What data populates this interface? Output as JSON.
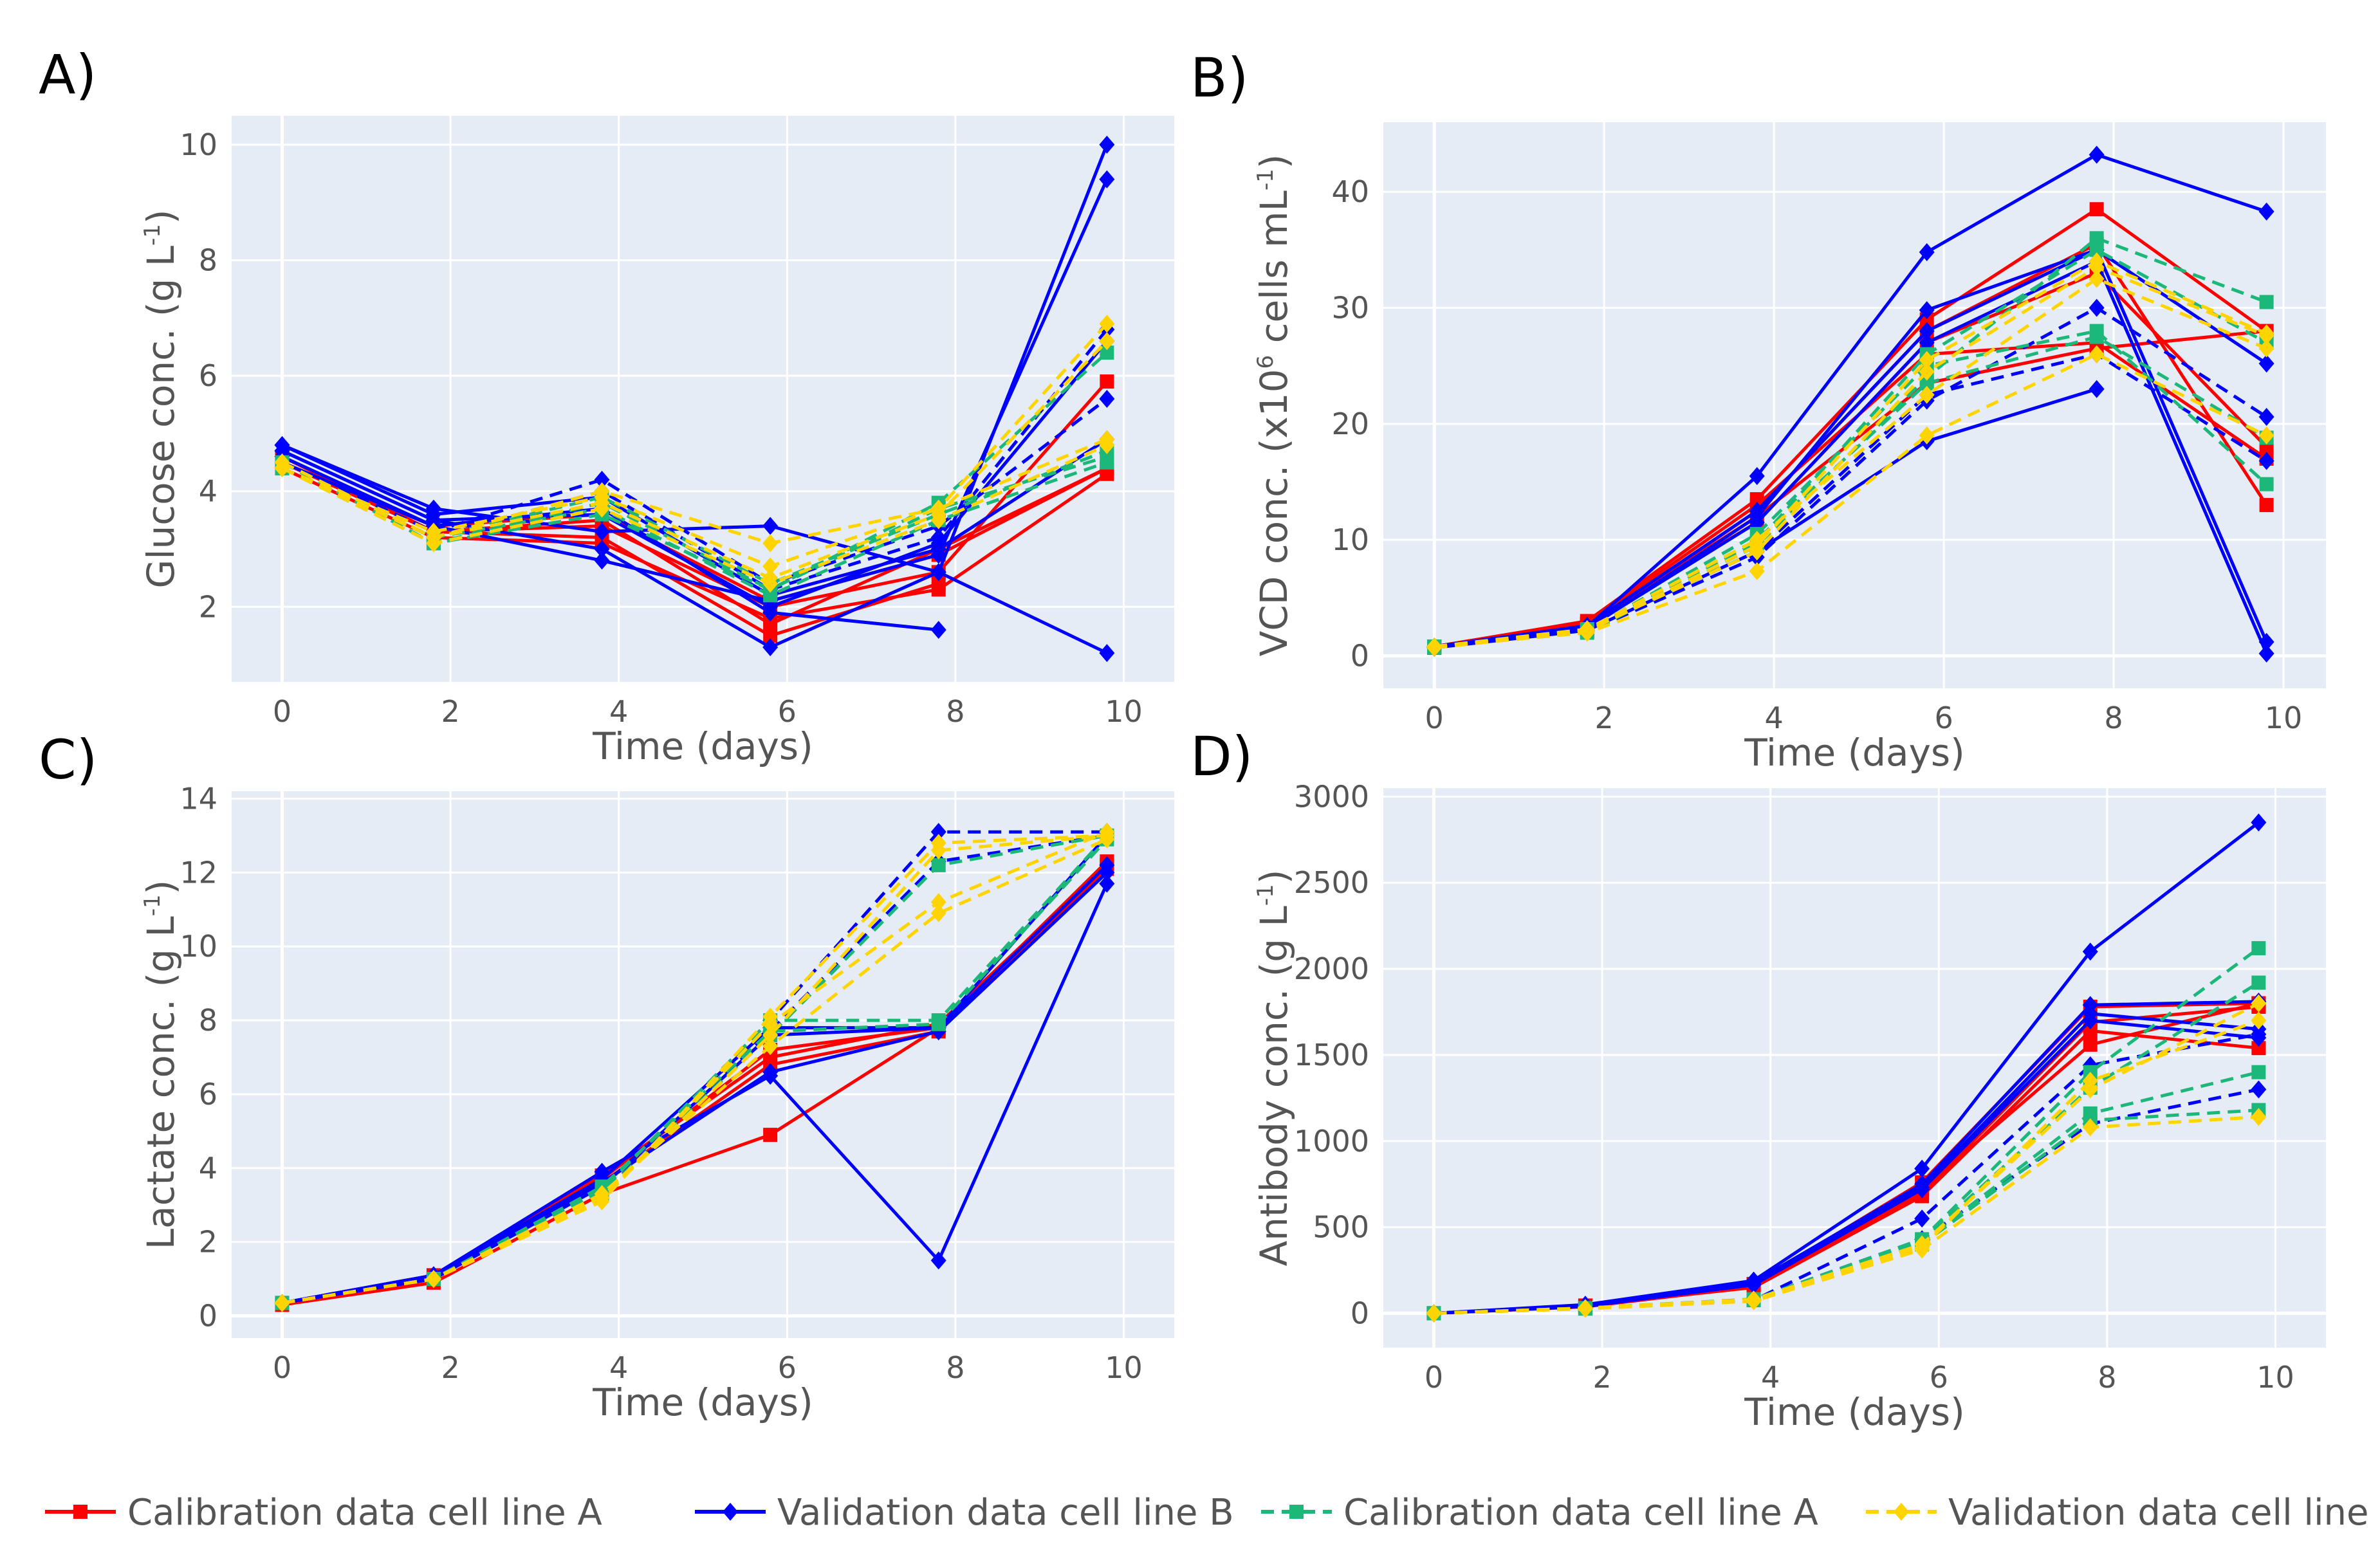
{
  "colors": {
    "background": "#ffffff",
    "plot_bg": "#e5ecf6",
    "grid": "#ffffff",
    "text": "#555555",
    "letter": "#000000",
    "cal_A": "#ff0000",
    "val_B": "#0000ff",
    "cal_A_dash": "#1cb87a",
    "val_B_dash": "#ffd400"
  },
  "legend": [
    {
      "label": "Calibration data cell line  A",
      "color": "#ff0000",
      "dash": false,
      "marker": "square"
    },
    {
      "label": "Validation data cell line B",
      "color": "#0000ff",
      "dash": false,
      "marker": "diamond"
    },
    {
      "label": "Calibration data cell line A",
      "color": "#1cb87a",
      "dash": true,
      "marker": "square"
    },
    {
      "label": "Validation data cell line B",
      "color": "#ffd400",
      "dash": true,
      "marker": "diamond"
    }
  ],
  "chart_data": [
    {
      "id": "A",
      "letter": "A)",
      "type": "line",
      "xlabel": "Time (days)",
      "ylabel": "Glucose conc. (g L",
      "ylabel_sup": "-1",
      "ylabel_end": ")",
      "xlim": [
        -0.6,
        10.6
      ],
      "ylim": [
        0.7,
        10.5
      ],
      "xticks": [
        0,
        2,
        4,
        6,
        8,
        10
      ],
      "yticks": [
        2,
        4,
        6,
        8,
        10
      ],
      "x": [
        0,
        1.8,
        3.8,
        5.8,
        7.8,
        9.8
      ],
      "series": [
        {
          "group": "cal_A",
          "values": [
            4.5,
            3.3,
            3.2,
            1.5,
            2.4,
            null
          ]
        },
        {
          "group": "cal_A",
          "values": [
            4.4,
            3.2,
            3.1,
            1.8,
            2.3,
            4.3
          ]
        },
        {
          "group": "cal_A",
          "values": [
            4.6,
            3.3,
            3.4,
            2.0,
            2.6,
            5.9
          ]
        },
        {
          "group": "cal_A",
          "values": [
            4.5,
            3.4,
            3.6,
            2.1,
            2.9,
            4.4
          ]
        },
        {
          "group": "cal_A",
          "values": [
            4.6,
            3.3,
            3.5,
            1.7,
            3.0,
            4.4
          ]
        },
        {
          "group": "val_B",
          "values": [
            4.8,
            3.7,
            3.3,
            3.4,
            2.6,
            1.2
          ]
        },
        {
          "group": "val_B",
          "values": [
            4.7,
            3.5,
            3.0,
            1.3,
            2.6,
            10.0
          ]
        },
        {
          "group": "val_B",
          "values": [
            4.6,
            3.4,
            2.8,
            2.1,
            2.9,
            9.4
          ]
        },
        {
          "group": "val_B",
          "values": [
            4.5,
            3.4,
            3.7,
            1.9,
            1.6,
            null
          ]
        },
        {
          "group": "val_B",
          "values": [
            4.8,
            3.6,
            3.9,
            2.2,
            3.0,
            4.9
          ]
        },
        {
          "group": "val_B",
          "values": [
            4.7,
            3.5,
            3.6,
            2.0,
            3.1,
            6.6
          ]
        },
        {
          "group": "val_B",
          "dash": true,
          "values": [
            4.5,
            3.3,
            4.2,
            2.4,
            3.4,
            5.6
          ]
        },
        {
          "group": "val_B",
          "dash": true,
          "values": [
            4.4,
            3.2,
            4.0,
            2.3,
            3.2,
            6.8
          ]
        },
        {
          "group": "cal_A_dash",
          "values": [
            4.4,
            3.1,
            3.8,
            2.3,
            3.8,
            6.4
          ]
        },
        {
          "group": "cal_A_dash",
          "values": [
            4.5,
            3.2,
            3.9,
            2.4,
            3.6,
            4.7
          ]
        },
        {
          "group": "cal_A_dash",
          "values": [
            4.4,
            3.2,
            3.7,
            2.2,
            3.5,
            4.5
          ]
        },
        {
          "group": "cal_A_dash",
          "values": [
            4.5,
            3.1,
            3.6,
            2.3,
            3.7,
            4.6
          ]
        },
        {
          "group": "val_B_dash",
          "values": [
            4.4,
            3.2,
            4.0,
            3.1,
            3.7,
            6.9
          ]
        },
        {
          "group": "val_B_dash",
          "values": [
            4.4,
            3.3,
            3.9,
            2.7,
            3.7,
            4.9
          ]
        },
        {
          "group": "val_B_dash",
          "values": [
            4.5,
            3.2,
            3.8,
            2.5,
            3.6,
            6.6
          ]
        },
        {
          "group": "val_B_dash",
          "values": [
            4.4,
            3.1,
            3.7,
            2.4,
            3.5,
            4.8
          ]
        }
      ]
    },
    {
      "id": "B",
      "letter": "B)",
      "type": "line",
      "xlabel": "Time (days)",
      "ylabel": "VCD conc. (x10",
      "ylabel_sup": "6",
      "ylabel_end": " cells mL",
      "ylabel_sup2": "-1",
      "ylabel_end2": ")",
      "xlim": [
        -0.6,
        10.5
      ],
      "ylim": [
        -2.8,
        46
      ],
      "xticks": [
        0,
        2,
        4,
        6,
        8,
        10
      ],
      "yticks": [
        0,
        10,
        20,
        30,
        40
      ],
      "x": [
        0,
        1.8,
        3.8,
        5.8,
        7.8,
        9.8
      ],
      "series": [
        {
          "group": "cal_A",
          "values": [
            0.8,
            3.0,
            13.5,
            29.0,
            38.5,
            28.0
          ]
        },
        {
          "group": "cal_A",
          "values": [
            0.7,
            2.5,
            12.5,
            28.0,
            35.5,
            13.0
          ]
        },
        {
          "group": "cal_A",
          "values": [
            0.8,
            2.8,
            13.0,
            26.0,
            27.0,
            17.0
          ]
        },
        {
          "group": "cal_A",
          "values": [
            0.7,
            2.6,
            12.0,
            23.5,
            26.5,
            28.0
          ]
        },
        {
          "group": "cal_A",
          "values": [
            0.8,
            2.7,
            11.5,
            27.0,
            33.0,
            18.0
          ]
        },
        {
          "group": "val_B",
          "values": [
            0.8,
            2.5,
            15.5,
            34.8,
            43.2,
            38.3
          ]
        },
        {
          "group": "val_B",
          "values": [
            0.7,
            2.3,
            12.0,
            29.8,
            35.0,
            1.2
          ]
        },
        {
          "group": "val_B",
          "values": [
            0.8,
            2.4,
            11.5,
            27.0,
            34.0,
            0.2
          ]
        },
        {
          "group": "val_B",
          "values": [
            0.7,
            2.2,
            9.0,
            18.5,
            23.0,
            null
          ]
        },
        {
          "group": "val_B",
          "values": [
            0.8,
            2.6,
            12.5,
            28.0,
            35.0,
            25.2
          ]
        },
        {
          "group": "val_B",
          "dash": true,
          "values": [
            0.8,
            2.1,
            8.5,
            22.0,
            30.0,
            20.6
          ]
        },
        {
          "group": "val_B",
          "dash": true,
          "values": [
            0.7,
            2.2,
            9.0,
            22.5,
            26.0,
            16.8
          ]
        },
        {
          "group": "cal_A_dash",
          "values": [
            0.8,
            2.0,
            9.5,
            24.0,
            36.0,
            30.5
          ]
        },
        {
          "group": "cal_A_dash",
          "values": [
            0.8,
            2.2,
            10.5,
            25.0,
            28.0,
            14.8
          ]
        },
        {
          "group": "cal_A_dash",
          "values": [
            0.8,
            2.1,
            9.8,
            26.0,
            35.0,
            27.0
          ]
        },
        {
          "group": "cal_A_dash",
          "values": [
            0.7,
            2.3,
            10.0,
            23.5,
            27.5,
            18.8
          ]
        },
        {
          "group": "val_B_dash",
          "values": [
            0.8,
            2.0,
            7.3,
            19.0,
            26.0,
            19.0
          ]
        },
        {
          "group": "val_B_dash",
          "values": [
            0.8,
            2.2,
            9.0,
            24.5,
            33.5,
            27.6
          ]
        },
        {
          "group": "val_B_dash",
          "values": [
            0.7,
            2.1,
            9.5,
            25.5,
            34.0,
            27.8
          ]
        },
        {
          "group": "val_B_dash",
          "values": [
            0.8,
            2.3,
            10.0,
            22.5,
            32.5,
            26.5
          ]
        }
      ]
    },
    {
      "id": "C",
      "letter": "C)",
      "type": "line",
      "xlabel": "Time (days)",
      "ylabel": "Lactate conc. (g L",
      "ylabel_sup": "-1",
      "ylabel_end": ")",
      "xlim": [
        -0.6,
        10.6
      ],
      "ylim": [
        -0.6,
        14.2
      ],
      "xticks": [
        0,
        2,
        4,
        6,
        8,
        10
      ],
      "yticks": [
        0,
        2,
        4,
        6,
        8,
        10,
        12,
        14
      ],
      "x": [
        0,
        1.8,
        3.8,
        5.8,
        7.8,
        9.8
      ],
      "series": [
        {
          "group": "cal_A",
          "values": [
            0.3,
            0.9,
            3.3,
            4.9,
            7.8,
            12.2
          ]
        },
        {
          "group": "cal_A",
          "values": [
            0.35,
            1.0,
            3.6,
            6.8,
            7.7,
            12.1
          ]
        },
        {
          "group": "cal_A",
          "values": [
            0.3,
            1.0,
            3.7,
            7.2,
            7.8,
            12.3
          ]
        },
        {
          "group": "cal_A",
          "values": [
            0.35,
            1.1,
            3.8,
            7.0,
            7.9,
            12.2
          ]
        },
        {
          "group": "val_B",
          "values": [
            0.35,
            1.1,
            3.9,
            6.5,
            1.5,
            11.7
          ]
        },
        {
          "group": "val_B",
          "values": [
            0.35,
            1.1,
            3.6,
            6.6,
            7.7,
            12.0
          ]
        },
        {
          "group": "val_B",
          "values": [
            0.35,
            1.0,
            3.5,
            7.6,
            7.8,
            12.2
          ]
        },
        {
          "group": "val_B",
          "values": [
            0.35,
            1.1,
            3.7,
            7.8,
            7.8,
            13.0
          ]
        },
        {
          "group": "val_B",
          "dash": true,
          "values": [
            0.35,
            1.0,
            3.4,
            8.0,
            13.1,
            13.1
          ]
        },
        {
          "group": "val_B",
          "dash": true,
          "values": [
            0.35,
            1.0,
            3.3,
            7.7,
            12.3,
            13.0
          ]
        },
        {
          "group": "cal_A_dash",
          "values": [
            0.35,
            1.0,
            3.4,
            8.0,
            8.0,
            13.0
          ]
        },
        {
          "group": "cal_A_dash",
          "values": [
            0.35,
            1.0,
            3.5,
            7.7,
            7.9,
            12.9
          ]
        },
        {
          "group": "cal_A_dash",
          "values": [
            0.35,
            1.0,
            3.3,
            7.6,
            12.2,
            13.0
          ]
        },
        {
          "group": "val_B_dash",
          "values": [
            0.35,
            1.0,
            3.1,
            8.1,
            12.8,
            13.0
          ]
        },
        {
          "group": "val_B_dash",
          "values": [
            0.35,
            1.0,
            3.2,
            7.9,
            11.2,
            13.1
          ]
        },
        {
          "group": "val_B_dash",
          "values": [
            0.35,
            1.0,
            3.3,
            7.3,
            10.9,
            12.9
          ]
        },
        {
          "group": "val_B_dash",
          "values": [
            0.35,
            1.0,
            3.2,
            7.6,
            12.6,
            13.0
          ]
        }
      ]
    },
    {
      "id": "D",
      "letter": "D)",
      "type": "line",
      "xlabel": "Time (days)",
      "ylabel": "Antibody conc. (g L",
      "ylabel_sup": "-1",
      "ylabel_end": ")",
      "xlim": [
        -0.6,
        10.6
      ],
      "ylim": [
        -200,
        3050
      ],
      "xticks": [
        0,
        2,
        4,
        6,
        8,
        10
      ],
      "yticks": [
        0,
        500,
        1000,
        1500,
        2000,
        2500,
        3000
      ],
      "x": [
        0,
        1.8,
        3.8,
        5.8,
        7.8,
        9.8
      ],
      "series": [
        {
          "group": "cal_A",
          "values": [
            0,
            40,
            170,
            760,
            1780,
            1800
          ]
        },
        {
          "group": "cal_A",
          "values": [
            0,
            45,
            150,
            680,
            1640,
            1540
          ]
        },
        {
          "group": "cal_A",
          "values": [
            0,
            40,
            160,
            720,
            1560,
            1800
          ]
        },
        {
          "group": "cal_A",
          "values": [
            0,
            38,
            155,
            700,
            1690,
            1780
          ]
        },
        {
          "group": "val_B",
          "values": [
            0,
            50,
            190,
            840,
            2100,
            2850
          ]
        },
        {
          "group": "val_B",
          "values": [
            0,
            45,
            180,
            750,
            1790,
            1810
          ]
        },
        {
          "group": "val_B",
          "values": [
            0,
            40,
            170,
            730,
            1740,
            1650
          ]
        },
        {
          "group": "val_B",
          "values": [
            0,
            42,
            165,
            720,
            1700,
            1600
          ]
        },
        {
          "group": "val_B",
          "dash": true,
          "values": [
            0,
            30,
            75,
            550,
            1440,
            1620
          ]
        },
        {
          "group": "val_B",
          "dash": true,
          "values": [
            0,
            28,
            80,
            430,
            1100,
            1300
          ]
        },
        {
          "group": "cal_A_dash",
          "values": [
            0,
            30,
            80,
            430,
            1400,
            2120
          ]
        },
        {
          "group": "cal_A_dash",
          "values": [
            0,
            28,
            78,
            420,
            1310,
            1920
          ]
        },
        {
          "group": "cal_A_dash",
          "values": [
            0,
            30,
            82,
            410,
            1160,
            1400
          ]
        },
        {
          "group": "cal_A_dash",
          "values": [
            0,
            27,
            76,
            400,
            1120,
            1180
          ]
        },
        {
          "group": "val_B_dash",
          "values": [
            0,
            26,
            70,
            370,
            1080,
            1140
          ]
        },
        {
          "group": "val_B_dash",
          "values": [
            0,
            30,
            80,
            400,
            1300,
            1800
          ]
        },
        {
          "group": "val_B_dash",
          "values": [
            0,
            28,
            75,
            380,
            1350,
            1700
          ]
        }
      ]
    }
  ]
}
